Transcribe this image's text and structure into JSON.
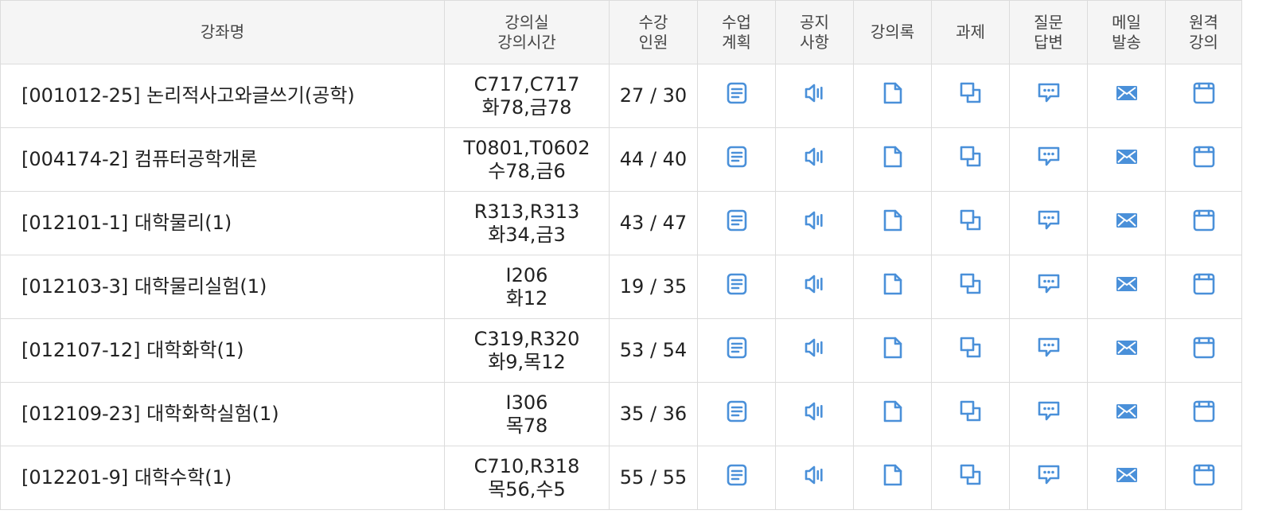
{
  "headers": {
    "course": "강좌명",
    "room_line1": "강의실",
    "room_line2": "강의시간",
    "count_line1": "수강",
    "count_line2": "인원",
    "plan_line1": "수업",
    "plan_line2": "계획",
    "notice_line1": "공지",
    "notice_line2": "사항",
    "lecture_notes": "강의록",
    "assignment": "과제",
    "qna_line1": "질문",
    "qna_line2": "답변",
    "mail_line1": "메일",
    "mail_line2": "발송",
    "remote_line1": "원격",
    "remote_line2": "강의"
  },
  "icons": {
    "plan": "document-list-icon",
    "notice": "speaker-icon",
    "lecture_notes": "page-icon",
    "assignment": "overlap-squares-icon",
    "qna": "chat-bubble-icon",
    "mail": "envelope-icon",
    "remote": "browser-window-icon",
    "accent_color": "#4a90d9"
  },
  "rows": [
    {
      "name": "[001012-25] 논리적사고와글쓰기(공학)",
      "room": "C717,C717",
      "time": "화78,금78",
      "enrolled": "27 / 30"
    },
    {
      "name": "[004174-2] 컴퓨터공학개론",
      "room": "T0801,T0602",
      "time": "수78,금6",
      "enrolled": "44 / 40"
    },
    {
      "name": "[012101-1] 대학물리(1)",
      "room": "R313,R313",
      "time": "화34,금3",
      "enrolled": "43 / 47"
    },
    {
      "name": "[012103-3] 대학물리실험(1)",
      "room": "I206",
      "time": "화12",
      "enrolled": "19 / 35"
    },
    {
      "name": "[012107-12] 대학화학(1)",
      "room": "C319,R320",
      "time": "화9,목12",
      "enrolled": "53 / 54"
    },
    {
      "name": "[012109-23] 대학화학실험(1)",
      "room": "I306",
      "time": "목78",
      "enrolled": "35 / 36"
    },
    {
      "name": "[012201-9] 대학수학(1)",
      "room": "C710,R318",
      "time": "목56,수5",
      "enrolled": "55 / 55"
    }
  ]
}
